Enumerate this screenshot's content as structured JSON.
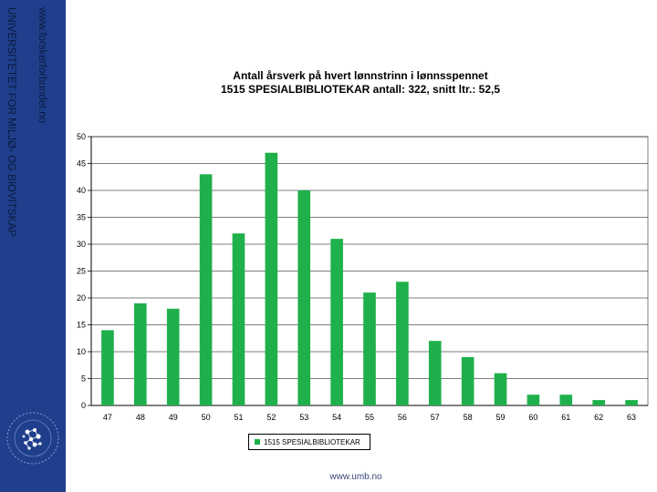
{
  "sidebar": {
    "line1": "www.forskerforbundet.no",
    "line2": "UNIVERSITETET FOR MILJØ- OG BIOVITSKAP"
  },
  "footer": "www.umb.no",
  "colors": {
    "sidebar": "#1f3f8c",
    "bar": "#1fb04b",
    "grid": "#000000"
  },
  "chart_data": {
    "type": "bar",
    "title": "Antall årsverk på hvert lønnstrinn i lønnsspennet",
    "subtitle": "1515 SPESIALBIBLIOTEKAR antall: 322, snitt ltr.: 52,5",
    "categories": [
      "47",
      "48",
      "49",
      "50",
      "51",
      "52",
      "53",
      "54",
      "55",
      "56",
      "57",
      "58",
      "59",
      "60",
      "61",
      "62",
      "63"
    ],
    "series": [
      {
        "name": "1515 SPESIALBIBLIOTEKAR",
        "values": [
          14,
          19,
          18,
          43,
          32,
          47,
          40,
          31,
          21,
          23,
          12,
          9,
          6,
          2,
          2,
          1,
          1
        ]
      }
    ],
    "ylim": [
      0,
      50
    ],
    "yticks": [
      0,
      5,
      10,
      15,
      20,
      25,
      30,
      35,
      40,
      45,
      50
    ],
    "grid": true,
    "legend": "bottom-center"
  }
}
